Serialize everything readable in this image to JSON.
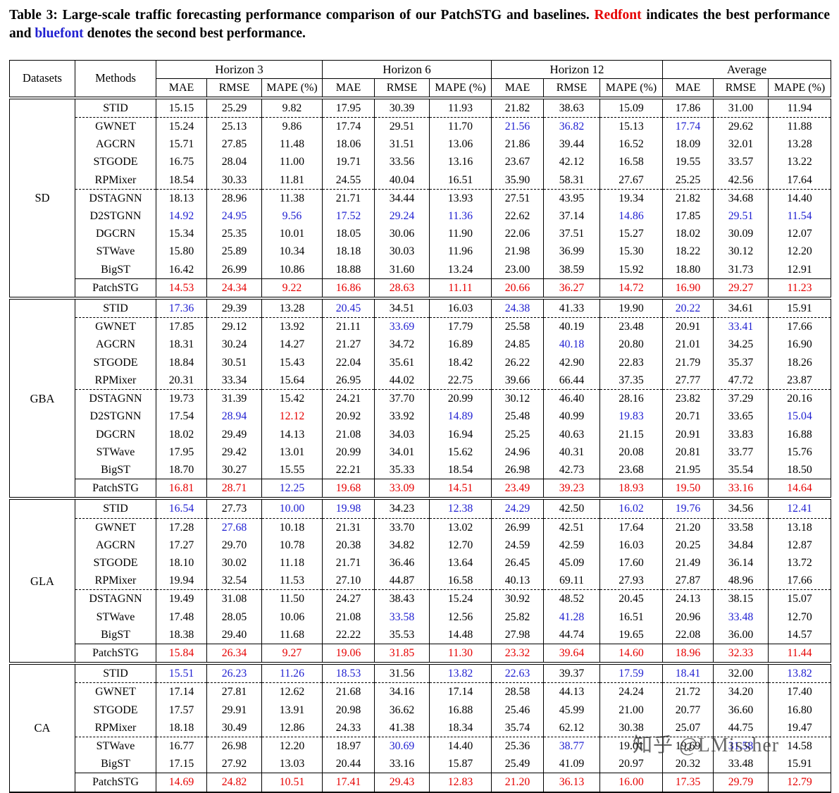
{
  "caption": {
    "prefix": "Table 3: Large-scale traffic forecasting performance comparison of our PatchSTG and baselines. ",
    "red_word": "Redfont",
    "middle": " indicates the best performance and ",
    "blue_word": "bluefont",
    "suffix": " denotes the second best performance."
  },
  "colors": {
    "best": "#e60000",
    "second": "#1f1fd1",
    "text": "#000000"
  },
  "header": {
    "datasets": "Datasets",
    "methods": "Methods",
    "groups": [
      "Horizon 3",
      "Horizon 6",
      "Horizon 12",
      "Average"
    ],
    "metrics": [
      "MAE",
      "RMSE",
      "MAPE (%)"
    ]
  },
  "watermark": "知乎 @LMissher",
  "sections": [
    {
      "dataset": "SD",
      "rows": [
        {
          "method": "STID",
          "values": [
            "15.15",
            "25.29",
            "9.82",
            "17.95",
            "30.39",
            "11.93",
            "21.82",
            "38.63",
            "15.09",
            "17.86",
            "31.00",
            "11.94"
          ],
          "colors": "kkkkkkkkkkkk",
          "rule": "dashed"
        },
        {
          "method": "GWNET",
          "values": [
            "15.24",
            "25.13",
            "9.86",
            "17.74",
            "29.51",
            "11.70",
            "21.56",
            "36.82",
            "15.13",
            "17.74",
            "29.62",
            "11.88"
          ],
          "colors": "kkkkkkbbkbkk"
        },
        {
          "method": "AGCRN",
          "values": [
            "15.71",
            "27.85",
            "11.48",
            "18.06",
            "31.51",
            "13.06",
            "21.86",
            "39.44",
            "16.52",
            "18.09",
            "32.01",
            "13.28"
          ],
          "colors": "kkkkkkkkkkkk"
        },
        {
          "method": "STGODE",
          "values": [
            "16.75",
            "28.04",
            "11.00",
            "19.71",
            "33.56",
            "13.16",
            "23.67",
            "42.12",
            "16.58",
            "19.55",
            "33.57",
            "13.22"
          ],
          "colors": "kkkkkkkkkkkk"
        },
        {
          "method": "RPMixer",
          "values": [
            "18.54",
            "30.33",
            "11.81",
            "24.55",
            "40.04",
            "16.51",
            "35.90",
            "58.31",
            "27.67",
            "25.25",
            "42.56",
            "17.64"
          ],
          "colors": "kkkkkkkkkkkk",
          "rule": "dashed"
        },
        {
          "method": "DSTAGNN",
          "values": [
            "18.13",
            "28.96",
            "11.38",
            "21.71",
            "34.44",
            "13.93",
            "27.51",
            "43.95",
            "19.34",
            "21.82",
            "34.68",
            "14.40"
          ],
          "colors": "kkkkkkkkkkkk"
        },
        {
          "method": "D2STGNN",
          "values": [
            "14.92",
            "24.95",
            "9.56",
            "17.52",
            "29.24",
            "11.36",
            "22.62",
            "37.14",
            "14.86",
            "17.85",
            "29.51",
            "11.54"
          ],
          "colors": "bbbbbbkkbkbb"
        },
        {
          "method": "DGCRN",
          "values": [
            "15.34",
            "25.35",
            "10.01",
            "18.05",
            "30.06",
            "11.90",
            "22.06",
            "37.51",
            "15.27",
            "18.02",
            "30.09",
            "12.07"
          ],
          "colors": "kkkkkkkkkkkk"
        },
        {
          "method": "STWave",
          "values": [
            "15.80",
            "25.89",
            "10.34",
            "18.18",
            "30.03",
            "11.96",
            "21.98",
            "36.99",
            "15.30",
            "18.22",
            "30.12",
            "12.20"
          ],
          "colors": "kkkkkkkkkkkk"
        },
        {
          "method": "BigST",
          "values": [
            "16.42",
            "26.99",
            "10.86",
            "18.88",
            "31.60",
            "13.24",
            "23.00",
            "38.59",
            "15.92",
            "18.80",
            "31.73",
            "12.91"
          ],
          "colors": "kkkkkkkkkkkk",
          "rule": "solid"
        },
        {
          "method": "PatchSTG",
          "values": [
            "14.53",
            "24.34",
            "9.22",
            "16.86",
            "28.63",
            "11.11",
            "20.66",
            "36.27",
            "14.72",
            "16.90",
            "29.27",
            "11.23"
          ],
          "colors": "rrrrrrrrrrrr"
        }
      ]
    },
    {
      "dataset": "GBA",
      "rows": [
        {
          "method": "STID",
          "values": [
            "17.36",
            "29.39",
            "13.28",
            "20.45",
            "34.51",
            "16.03",
            "24.38",
            "41.33",
            "19.90",
            "20.22",
            "34.61",
            "15.91"
          ],
          "colors": "bkkbkkbkkbkk",
          "rule": "dashed"
        },
        {
          "method": "GWNET",
          "values": [
            "17.85",
            "29.12",
            "13.92",
            "21.11",
            "33.69",
            "17.79",
            "25.58",
            "40.19",
            "23.48",
            "20.91",
            "33.41",
            "17.66"
          ],
          "colors": "kkkkbkkkkkbk"
        },
        {
          "method": "AGCRN",
          "values": [
            "18.31",
            "30.24",
            "14.27",
            "21.27",
            "34.72",
            "16.89",
            "24.85",
            "40.18",
            "20.80",
            "21.01",
            "34.25",
            "16.90"
          ],
          "colors": "kkkkkkkbkkkk"
        },
        {
          "method": "STGODE",
          "values": [
            "18.84",
            "30.51",
            "15.43",
            "22.04",
            "35.61",
            "18.42",
            "26.22",
            "42.90",
            "22.83",
            "21.79",
            "35.37",
            "18.26"
          ],
          "colors": "kkkkkkkkkkkk"
        },
        {
          "method": "RPMixer",
          "values": [
            "20.31",
            "33.34",
            "15.64",
            "26.95",
            "44.02",
            "22.75",
            "39.66",
            "66.44",
            "37.35",
            "27.77",
            "47.72",
            "23.87"
          ],
          "colors": "kkkkkkkkkkkk",
          "rule": "dashed"
        },
        {
          "method": "DSTAGNN",
          "values": [
            "19.73",
            "31.39",
            "15.42",
            "24.21",
            "37.70",
            "20.99",
            "30.12",
            "46.40",
            "28.16",
            "23.82",
            "37.29",
            "20.16"
          ],
          "colors": "kkkkkkkkkkkk"
        },
        {
          "method": "D2STGNN",
          "values": [
            "17.54",
            "28.94",
            "12.12",
            "20.92",
            "33.92",
            "14.89",
            "25.48",
            "40.99",
            "19.83",
            "20.71",
            "33.65",
            "15.04"
          ],
          "colors": "kbrkkbkkbkkb"
        },
        {
          "method": "DGCRN",
          "values": [
            "18.02",
            "29.49",
            "14.13",
            "21.08",
            "34.03",
            "16.94",
            "25.25",
            "40.63",
            "21.15",
            "20.91",
            "33.83",
            "16.88"
          ],
          "colors": "kkkkkkkkkkkk"
        },
        {
          "method": "STWave",
          "values": [
            "17.95",
            "29.42",
            "13.01",
            "20.99",
            "34.01",
            "15.62",
            "24.96",
            "40.31",
            "20.08",
            "20.81",
            "33.77",
            "15.76"
          ],
          "colors": "kkkkkkkkkkkk"
        },
        {
          "method": "BigST",
          "values": [
            "18.70",
            "30.27",
            "15.55",
            "22.21",
            "35.33",
            "18.54",
            "26.98",
            "42.73",
            "23.68",
            "21.95",
            "35.54",
            "18.50"
          ],
          "colors": "kkkkkkkkkkkk",
          "rule": "solid"
        },
        {
          "method": "PatchSTG",
          "values": [
            "16.81",
            "28.71",
            "12.25",
            "19.68",
            "33.09",
            "14.51",
            "23.49",
            "39.23",
            "18.93",
            "19.50",
            "33.16",
            "14.64"
          ],
          "colors": "rrbrrrrrrrrr"
        }
      ]
    },
    {
      "dataset": "GLA",
      "rows": [
        {
          "method": "STID",
          "values": [
            "16.54",
            "27.73",
            "10.00",
            "19.98",
            "34.23",
            "12.38",
            "24.29",
            "42.50",
            "16.02",
            "19.76",
            "34.56",
            "12.41"
          ],
          "colors": "bkbbkbbkbbkb",
          "rule": "dashed"
        },
        {
          "method": "GWNET",
          "values": [
            "17.28",
            "27.68",
            "10.18",
            "21.31",
            "33.70",
            "13.02",
            "26.99",
            "42.51",
            "17.64",
            "21.20",
            "33.58",
            "13.18"
          ],
          "colors": "kbkkkkkkkkkk"
        },
        {
          "method": "AGCRN",
          "values": [
            "17.27",
            "29.70",
            "10.78",
            "20.38",
            "34.82",
            "12.70",
            "24.59",
            "42.59",
            "16.03",
            "20.25",
            "34.84",
            "12.87"
          ],
          "colors": "kkkkkkkkkkkk"
        },
        {
          "method": "STGODE",
          "values": [
            "18.10",
            "30.02",
            "11.18",
            "21.71",
            "36.46",
            "13.64",
            "26.45",
            "45.09",
            "17.60",
            "21.49",
            "36.14",
            "13.72"
          ],
          "colors": "kkkkkkkkkkkk"
        },
        {
          "method": "RPMixer",
          "values": [
            "19.94",
            "32.54",
            "11.53",
            "27.10",
            "44.87",
            "16.58",
            "40.13",
            "69.11",
            "27.93",
            "27.87",
            "48.96",
            "17.66"
          ],
          "colors": "kkkkkkkkkkkk",
          "rule": "dashed"
        },
        {
          "method": "DSTAGNN",
          "values": [
            "19.49",
            "31.08",
            "11.50",
            "24.27",
            "38.43",
            "15.24",
            "30.92",
            "48.52",
            "20.45",
            "24.13",
            "38.15",
            "15.07"
          ],
          "colors": "kkkkkkkkkkkk"
        },
        {
          "method": "STWave",
          "values": [
            "17.48",
            "28.05",
            "10.06",
            "21.08",
            "33.58",
            "12.56",
            "25.82",
            "41.28",
            "16.51",
            "20.96",
            "33.48",
            "12.70"
          ],
          "colors": "kkkkbkkbkkbk"
        },
        {
          "method": "BigST",
          "values": [
            "18.38",
            "29.40",
            "11.68",
            "22.22",
            "35.53",
            "14.48",
            "27.98",
            "44.74",
            "19.65",
            "22.08",
            "36.00",
            "14.57"
          ],
          "colors": "kkkkkkkkkkkk",
          "rule": "solid"
        },
        {
          "method": "PatchSTG",
          "values": [
            "15.84",
            "26.34",
            "9.27",
            "19.06",
            "31.85",
            "11.30",
            "23.32",
            "39.64",
            "14.60",
            "18.96",
            "32.33",
            "11.44"
          ],
          "colors": "rrrrrrrrrrrr"
        }
      ]
    },
    {
      "dataset": "CA",
      "rows": [
        {
          "method": "STID",
          "values": [
            "15.51",
            "26.23",
            "11.26",
            "18.53",
            "31.56",
            "13.82",
            "22.63",
            "39.37",
            "17.59",
            "18.41",
            "32.00",
            "13.82"
          ],
          "colors": "bbbbkbbkbbkb",
          "rule": "dashed"
        },
        {
          "method": "GWNET",
          "values": [
            "17.14",
            "27.81",
            "12.62",
            "21.68",
            "34.16",
            "17.14",
            "28.58",
            "44.13",
            "24.24",
            "21.72",
            "34.20",
            "17.40"
          ],
          "colors": "kkkkkkkkkkkk"
        },
        {
          "method": "STGODE",
          "values": [
            "17.57",
            "29.91",
            "13.91",
            "20.98",
            "36.62",
            "16.88",
            "25.46",
            "45.99",
            "21.00",
            "20.77",
            "36.60",
            "16.80"
          ],
          "colors": "kkkkkkkkkkkk"
        },
        {
          "method": "RPMixer",
          "values": [
            "18.18",
            "30.49",
            "12.86",
            "24.33",
            "41.38",
            "18.34",
            "35.74",
            "62.12",
            "30.38",
            "25.07",
            "44.75",
            "19.47"
          ],
          "colors": "kkkkkkkkkkkk",
          "rule": "dashed"
        },
        {
          "method": "STWave",
          "values": [
            "16.77",
            "26.98",
            "12.20",
            "18.97",
            "30.69",
            "14.40",
            "25.36",
            "38.77",
            "19.01",
            "19.69",
            "31.58",
            "14.58"
          ],
          "colors": "kkkkbkkbkkbk"
        },
        {
          "method": "BigST",
          "values": [
            "17.15",
            "27.92",
            "13.03",
            "20.44",
            "33.16",
            "15.87",
            "25.49",
            "41.09",
            "20.97",
            "20.32",
            "33.48",
            "15.91"
          ],
          "colors": "kkkkkkkkkkkk",
          "rule": "solid"
        },
        {
          "method": "PatchSTG",
          "values": [
            "14.69",
            "24.82",
            "10.51",
            "17.41",
            "29.43",
            "12.83",
            "21.20",
            "36.13",
            "16.00",
            "17.35",
            "29.79",
            "12.79"
          ],
          "colors": "rrrrrrrrrrrr"
        }
      ]
    }
  ]
}
